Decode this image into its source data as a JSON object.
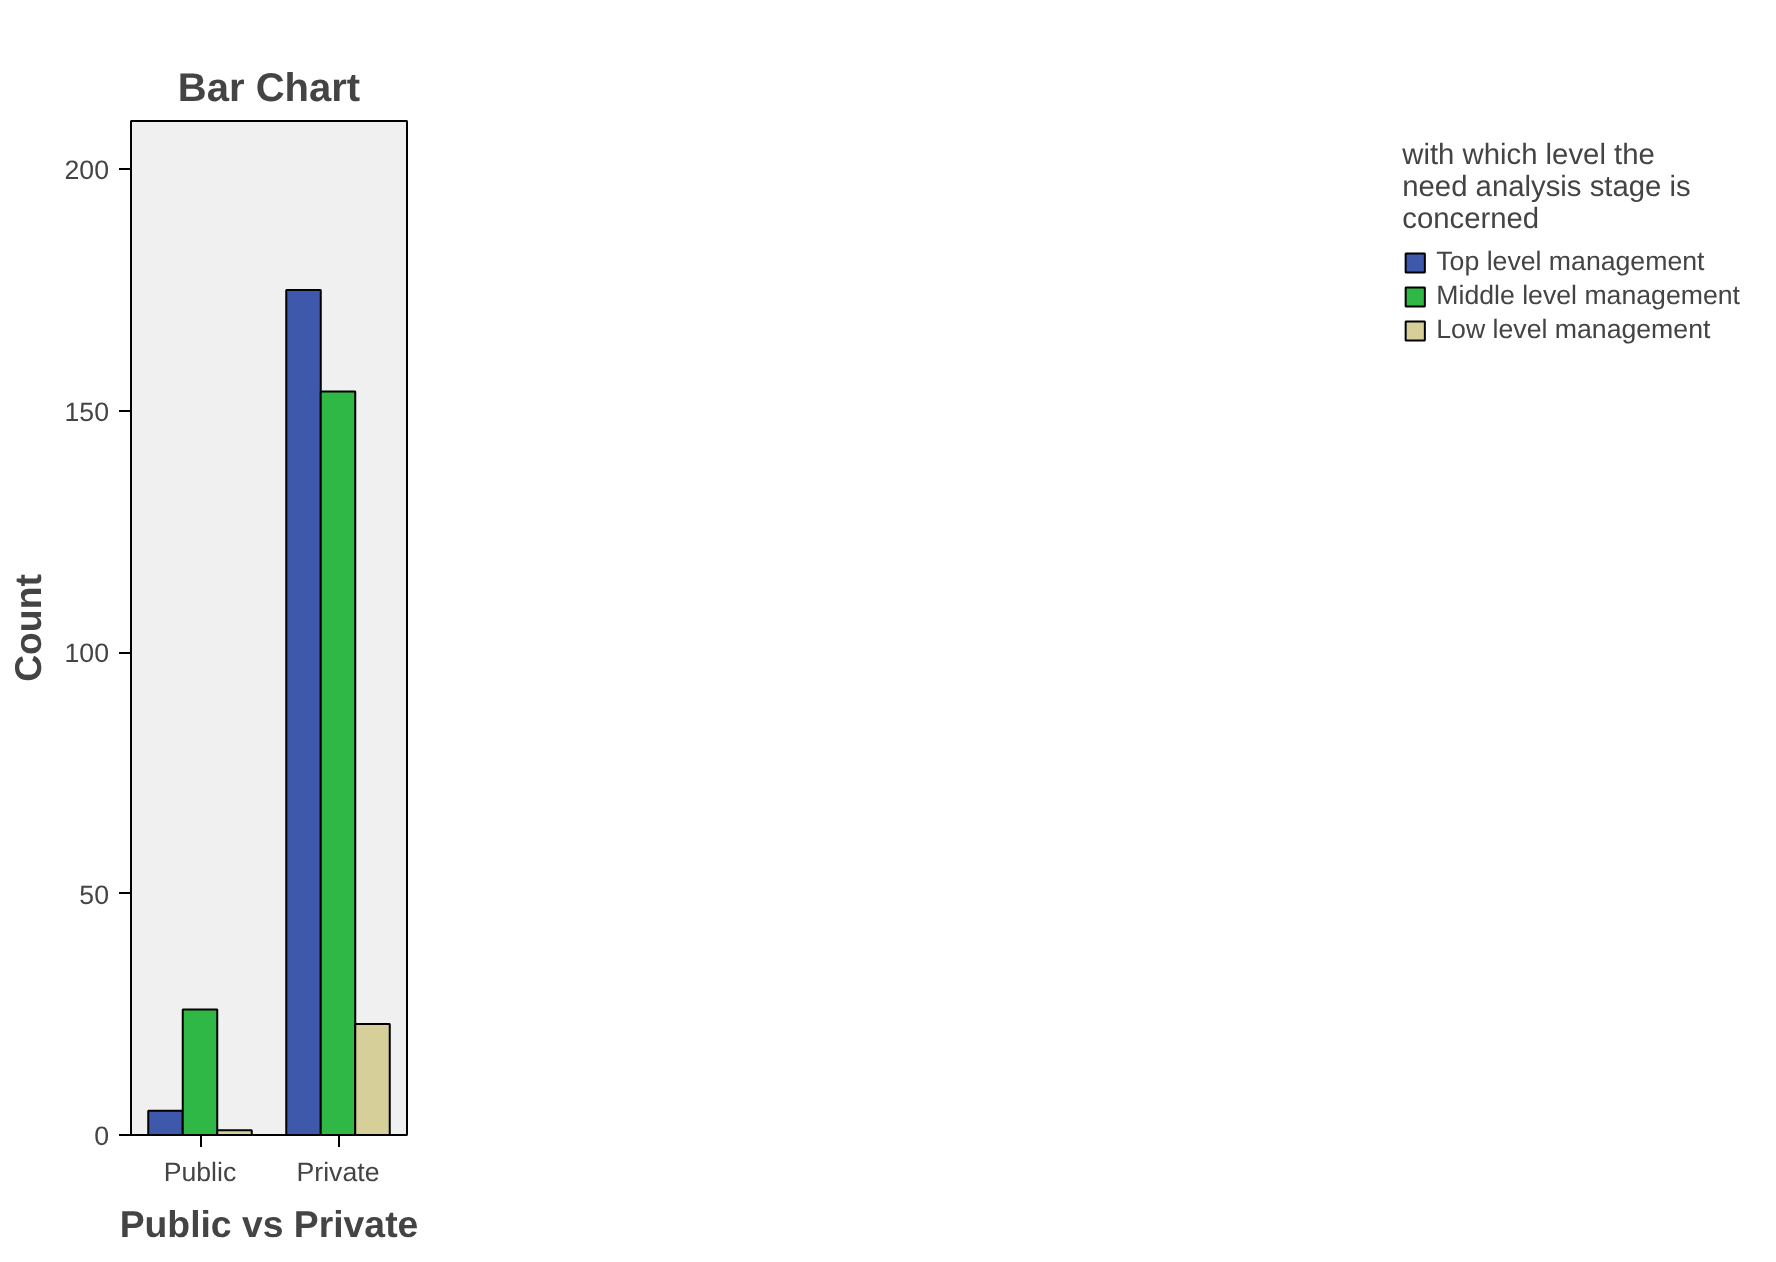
{
  "chart_data": {
    "type": "bar",
    "title": "Bar Chart",
    "xlabel": "Public vs Private",
    "ylabel": "Count",
    "legend_title": "with which level the need analysis stage is concerned",
    "categories": [
      "Public",
      "Private"
    ],
    "series": [
      {
        "name": "Top level management",
        "color": "#3e58ac",
        "values": [
          5,
          175
        ]
      },
      {
        "name": "Middle level management",
        "color": "#30b847",
        "values": [
          26,
          154
        ]
      },
      {
        "name": "Low level management",
        "color": "#d6cf9a",
        "values": [
          1,
          23
        ]
      }
    ],
    "ylim": [
      0,
      210
    ],
    "yticks": [
      0,
      50,
      100,
      150,
      200
    ],
    "grid": false,
    "legend": "right"
  }
}
